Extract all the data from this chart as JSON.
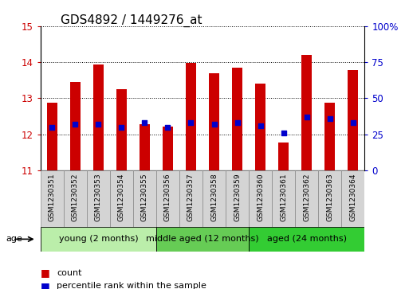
{
  "title": "GDS4892 / 1449276_at",
  "samples": [
    "GSM1230351",
    "GSM1230352",
    "GSM1230353",
    "GSM1230354",
    "GSM1230355",
    "GSM1230356",
    "GSM1230357",
    "GSM1230358",
    "GSM1230359",
    "GSM1230360",
    "GSM1230361",
    "GSM1230362",
    "GSM1230363",
    "GSM1230364"
  ],
  "count_values": [
    12.88,
    13.45,
    13.93,
    13.25,
    12.28,
    12.22,
    13.97,
    13.7,
    13.85,
    13.4,
    11.78,
    14.2,
    12.88,
    13.78
  ],
  "percentile_values": [
    30,
    32,
    32,
    30,
    33,
    30,
    33,
    32,
    33,
    31,
    26,
    37,
    36,
    33
  ],
  "ylim_left": [
    11,
    15
  ],
  "ylim_right": [
    0,
    100
  ],
  "bar_color": "#cc0000",
  "dot_color": "#0000cc",
  "bar_bottom": 11,
  "groups": [
    {
      "label": "young (2 months)",
      "start": 0,
      "end": 5,
      "color": "#bbeeaa"
    },
    {
      "label": "middle aged (12 months)",
      "start": 5,
      "end": 9,
      "color": "#66cc55"
    },
    {
      "label": "aged (24 months)",
      "start": 9,
      "end": 14,
      "color": "#33cc33"
    }
  ],
  "group_label": "age",
  "legend_count_label": "count",
  "legend_percentile_label": "percentile rank within the sample",
  "ylabel_left_color": "#cc0000",
  "ylabel_right_color": "#0000cc",
  "grid_color": "#000000",
  "title_fontsize": 11,
  "tick_fontsize": 8.5,
  "sample_label_fontsize": 6.5,
  "group_label_fontsize": 8,
  "legend_fontsize": 8
}
